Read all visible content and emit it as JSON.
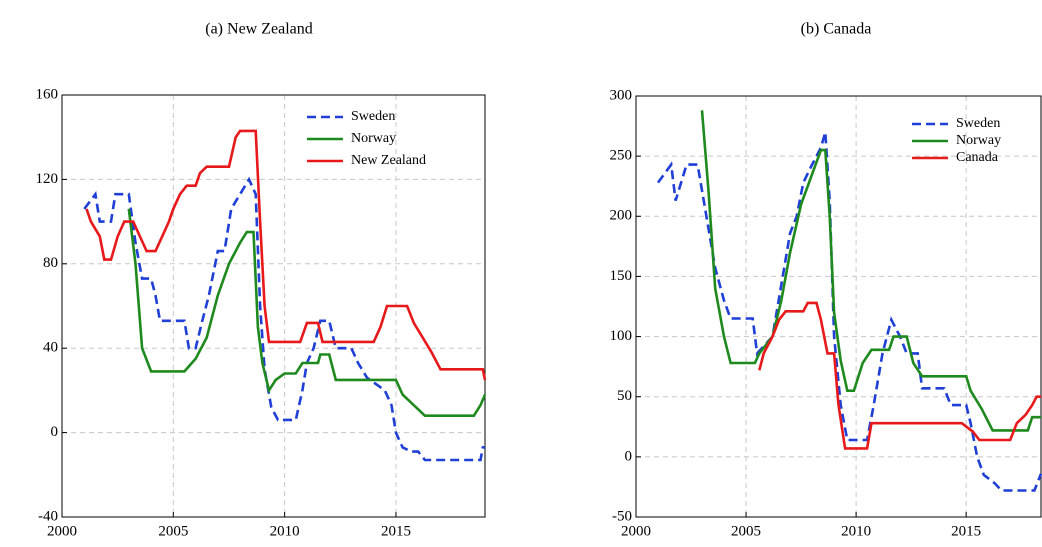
{
  "chart_data": [
    {
      "type": "line",
      "title": "(a) New Zealand",
      "grid": true,
      "legend": "upper right",
      "xlim": [
        2000,
        2019
      ],
      "xticks": [
        2000,
        2005,
        2010,
        2015
      ],
      "ylim": [
        -40,
        160
      ],
      "yticks": [
        -40,
        0,
        40,
        80,
        120,
        160
      ],
      "series": [
        {
          "name": "Sweden",
          "color": "#1f3fd6",
          "linestyle": "dashed",
          "x": [
            2001.0,
            2001.5,
            2001.7,
            2002.2,
            2002.4,
            2003.0,
            2003.3,
            2003.6,
            2004.0,
            2004.2,
            2004.4,
            2005.5,
            2005.7,
            2006.0,
            2006.3,
            2006.6,
            2007.0,
            2007.3,
            2007.6,
            2008.0,
            2008.4,
            2008.7,
            2008.9,
            2009.1,
            2009.4,
            2009.7,
            2010.5,
            2010.8,
            2011.0,
            2011.3,
            2011.6,
            2012.0,
            2012.3,
            2013.0,
            2013.3,
            2013.7,
            2014.5,
            2014.8,
            2015.0,
            2015.3,
            2015.7,
            2016.0,
            2016.3,
            2018.8,
            2018.9,
            2019.0
          ],
          "values": [
            106,
            113,
            100,
            100,
            113,
            113,
            90,
            73,
            73,
            65,
            53,
            53,
            40,
            40,
            53,
            65,
            86,
            86,
            106,
            113,
            120,
            113,
            60,
            30,
            12,
            6,
            6,
            20,
            33,
            40,
            53,
            53,
            40,
            40,
            33,
            26,
            20,
            13,
            0,
            -7,
            -9,
            -9,
            -13,
            -13,
            -7,
            -7
          ]
        },
        {
          "name": "Norway",
          "color": "#1e8a1e",
          "linestyle": "solid",
          "x": [
            2003.0,
            2003.3,
            2003.6,
            2004.0,
            2005.5,
            2006.0,
            2006.5,
            2007.0,
            2007.5,
            2008.0,
            2008.3,
            2008.6,
            2008.8,
            2009.0,
            2009.3,
            2009.6,
            2010.0,
            2010.5,
            2010.8,
            2011.5,
            2011.6,
            2012.0,
            2012.3,
            2015.0,
            2015.3,
            2015.8,
            2016.3,
            2018.5,
            2018.8,
            2019.0
          ],
          "values": [
            106,
            80,
            40,
            29,
            29,
            35,
            45,
            65,
            80,
            90,
            95,
            95,
            50,
            33,
            20,
            25,
            28,
            28,
            33,
            33,
            37,
            37,
            25,
            25,
            18,
            13,
            8,
            8,
            13,
            18
          ]
        },
        {
          "name": "New Zealand",
          "color": "#e8191b",
          "linestyle": "solid",
          "x": [
            2001.1,
            2001.3,
            2001.7,
            2001.9,
            2002.2,
            2002.5,
            2002.8,
            2003.2,
            2003.5,
            2003.8,
            2004.2,
            2004.5,
            2004.8,
            2005.0,
            2005.3,
            2005.6,
            2006.0,
            2006.2,
            2006.5,
            2007.5,
            2007.8,
            2008.0,
            2008.7,
            2008.9,
            2009.1,
            2009.3,
            2010.7,
            2011.0,
            2011.5,
            2011.7,
            2014.0,
            2014.3,
            2014.6,
            2015.5,
            2015.8,
            2016.2,
            2016.6,
            2017.0,
            2018.9,
            2019.0
          ],
          "values": [
            106,
            100,
            93,
            82,
            82,
            93,
            100,
            100,
            93,
            86,
            86,
            93,
            100,
            106,
            113,
            117,
            117,
            123,
            126,
            126,
            140,
            143,
            143,
            100,
            60,
            43,
            43,
            52,
            52,
            43,
            43,
            50,
            60,
            60,
            52,
            45,
            38,
            30,
            30,
            25
          ]
        }
      ]
    },
    {
      "type": "line",
      "title": "(b) Canada",
      "grid": true,
      "legend": "upper right",
      "xlim": [
        2000,
        2018.4
      ],
      "xticks": [
        2000,
        2005,
        2010,
        2015
      ],
      "ylim": [
        -50,
        300
      ],
      "yticks": [
        -50,
        0,
        50,
        100,
        150,
        200,
        250,
        300
      ],
      "series": [
        {
          "name": "Sweden",
          "color": "#1f3fd6",
          "linestyle": "dashed",
          "x": [
            2001.0,
            2001.6,
            2001.8,
            2002.3,
            2002.8,
            2003.2,
            2003.6,
            2004.0,
            2004.3,
            2005.3,
            2005.5,
            2006.2,
            2006.6,
            2007.0,
            2007.3,
            2007.6,
            2008.0,
            2008.4,
            2008.6,
            2008.8,
            2009.0,
            2009.3,
            2009.6,
            2010.5,
            2010.8,
            2011.2,
            2011.6,
            2012.0,
            2012.3,
            2012.8,
            2013.0,
            2014.0,
            2014.3,
            2015.0,
            2015.2,
            2015.5,
            2015.8,
            2016.3,
            2016.6,
            2018.1,
            2018.4
          ],
          "values": [
            228,
            243,
            213,
            243,
            243,
            200,
            157,
            130,
            115,
            115,
            86,
            100,
            143,
            186,
            200,
            228,
            243,
            257,
            270,
            213,
            100,
            43,
            14,
            14,
            43,
            86,
            114,
            100,
            86,
            86,
            57,
            57,
            43,
            43,
            28,
            0,
            -15,
            -22,
            -28,
            -28,
            -14
          ]
        },
        {
          "name": "Norway",
          "color": "#1e8a1e",
          "linestyle": "solid",
          "x": [
            2003.0,
            2003.3,
            2003.6,
            2004.0,
            2004.3,
            2005.4,
            2005.6,
            2006.2,
            2006.6,
            2007.0,
            2007.5,
            2008.0,
            2008.4,
            2008.6,
            2008.8,
            2009.0,
            2009.3,
            2009.6,
            2009.9,
            2010.3,
            2010.7,
            2011.5,
            2011.7,
            2012.3,
            2012.6,
            2013.0,
            2015.0,
            2015.2,
            2015.7,
            2016.2,
            2017.8,
            2018.0,
            2018.4
          ],
          "values": [
            288,
            220,
            140,
            100,
            78,
            78,
            86,
            100,
            130,
            170,
            210,
            235,
            255,
            255,
            200,
            120,
            80,
            55,
            55,
            78,
            89,
            89,
            100,
            100,
            78,
            67,
            67,
            55,
            40,
            22,
            22,
            33,
            33
          ]
        },
        {
          "name": "Canada",
          "color": "#e8191b",
          "linestyle": "solid",
          "x": [
            2005.6,
            2005.8,
            2006.2,
            2006.5,
            2006.8,
            2007.6,
            2007.8,
            2008.2,
            2008.4,
            2008.7,
            2009.0,
            2009.2,
            2009.5,
            2010.5,
            2010.7,
            2014.8,
            2015.3,
            2015.6,
            2017.0,
            2017.3,
            2017.7,
            2018.0,
            2018.2,
            2018.4
          ],
          "values": [
            72,
            86,
            100,
            114,
            121,
            121,
            128,
            128,
            114,
            86,
            86,
            43,
            7,
            7,
            28,
            28,
            21,
            14,
            14,
            28,
            35,
            43,
            50,
            50
          ]
        }
      ]
    }
  ]
}
